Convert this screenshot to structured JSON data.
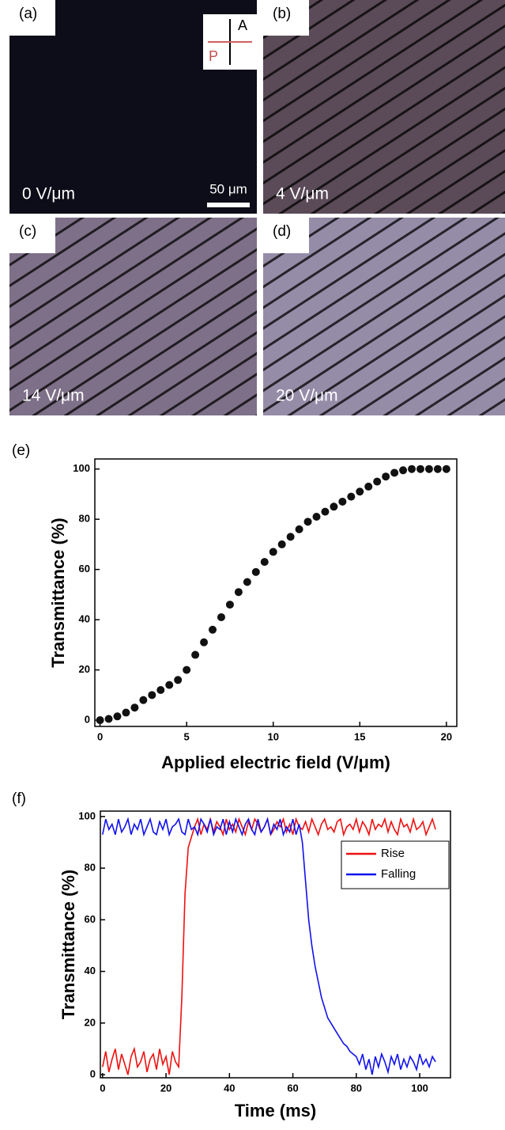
{
  "micrographs": [
    {
      "label": "(a)",
      "field": "0 V/μm"
    },
    {
      "label": "(b)",
      "field": "4 V/μm"
    },
    {
      "label": "(c)",
      "field": "14 V/μm"
    },
    {
      "label": "(d)",
      "field": "20 V/μm"
    }
  ],
  "scale_bar": "50 μm",
  "analyzer": "A",
  "polarizer": "P",
  "chart_data": [
    {
      "type": "scatter",
      "panel_label": "(e)",
      "x_label": "Applied electric field (V/μm)",
      "y_label": "Transmittance (%)",
      "x": [
        0,
        0.5,
        1,
        1.5,
        2,
        2.5,
        3,
        3.5,
        4,
        4.5,
        5,
        5.5,
        6,
        6.5,
        7,
        7.5,
        8,
        8.5,
        9,
        9.5,
        10,
        10.5,
        11,
        11.5,
        12,
        12.5,
        13,
        13.5,
        14,
        14.5,
        15,
        15.5,
        16,
        16.5,
        17,
        17.5,
        18,
        18.5,
        19,
        19.5,
        20
      ],
      "values": [
        0,
        0.5,
        1.5,
        3,
        5,
        8,
        10,
        12,
        14,
        16,
        20,
        26,
        31,
        36,
        41,
        46,
        51,
        55,
        59,
        63,
        67,
        70,
        73,
        76,
        79,
        81,
        83,
        85,
        87,
        89,
        91,
        93,
        95,
        97,
        98.5,
        99.5,
        100,
        100,
        100,
        100,
        100
      ],
      "color": "#111111",
      "xlim": [
        -0.3,
        20.6
      ],
      "ylim": [
        -2.5,
        104
      ],
      "xticks": [
        0,
        5,
        10,
        15,
        20
      ],
      "yticks": [
        0,
        20,
        40,
        60,
        80,
        100
      ]
    },
    {
      "type": "line",
      "panel_label": "(f)",
      "x_label": "Time (ms)",
      "y_label": "Transmittance (%)",
      "x": [
        0,
        1,
        2,
        3,
        4,
        5,
        6,
        7,
        8,
        9,
        10,
        11,
        12,
        13,
        14,
        15,
        16,
        17,
        18,
        19,
        20,
        21,
        22,
        23,
        24,
        25,
        26,
        27,
        28,
        29,
        30,
        31,
        32,
        33,
        34,
        35,
        36,
        37,
        38,
        39,
        40,
        41,
        42,
        43,
        44,
        45,
        46,
        47,
        48,
        49,
        50,
        51,
        52,
        53,
        54,
        55,
        56,
        57,
        58,
        59,
        60,
        61,
        62,
        63,
        64,
        65,
        66,
        67,
        68,
        69,
        70,
        71,
        72,
        73,
        74,
        75,
        76,
        77,
        78,
        79,
        80,
        81,
        82,
        83,
        84,
        85,
        86,
        87,
        88,
        89,
        90,
        91,
        92,
        93,
        94,
        95,
        96,
        97,
        98,
        99,
        100,
        101,
        102,
        103,
        104,
        105
      ],
      "series": [
        {
          "name": "Rise",
          "color": "#ee1111",
          "values": [
            3,
            9,
            1,
            6,
            10,
            2,
            8,
            4,
            0,
            7,
            10,
            3,
            5,
            9,
            1,
            6,
            8,
            2,
            10,
            4,
            7,
            0,
            9,
            5,
            3,
            30,
            70,
            88,
            92,
            96,
            99,
            93,
            97,
            95,
            99,
            94,
            98,
            96,
            93,
            99,
            95,
            97,
            94,
            99,
            96,
            93,
            98,
            95,
            99,
            97,
            94,
            96,
            99,
            93,
            95,
            98,
            96,
            99,
            94,
            97,
            93,
            99,
            96,
            95,
            98,
            94,
            99,
            96,
            93,
            97,
            99,
            95,
            96,
            94,
            98,
            99,
            93,
            96,
            97,
            95,
            99,
            94,
            98,
            96,
            93,
            99,
            95,
            97,
            96,
            99,
            94,
            98,
            95,
            93,
            99,
            96,
            97,
            94,
            99,
            95,
            96,
            98,
            93,
            96,
            99,
            95
          ]
        },
        {
          "name": "Falling",
          "color": "#1111ee",
          "values": [
            93,
            99,
            95,
            97,
            93,
            99,
            94,
            96,
            99,
            93,
            97,
            95,
            99,
            93,
            96,
            99,
            94,
            93,
            98,
            95,
            99,
            93,
            96,
            97,
            99,
            94,
            93,
            99,
            95,
            96,
            93,
            99,
            97,
            94,
            99,
            93,
            96,
            95,
            99,
            93,
            98,
            94,
            99,
            96,
            93,
            97,
            99,
            95,
            93,
            99,
            94,
            96,
            99,
            93,
            97,
            95,
            99,
            93,
            96,
            94,
            99,
            93,
            97,
            90,
            75,
            60,
            50,
            42,
            36,
            30,
            26,
            22,
            20,
            18,
            16,
            14,
            12,
            11,
            9,
            8,
            7,
            4,
            8,
            2,
            6,
            0,
            7,
            3,
            8,
            5,
            1,
            7,
            4,
            8,
            2,
            6,
            3,
            7,
            5,
            2,
            8,
            4,
            6,
            3,
            7,
            5
          ]
        }
      ],
      "legend": "upper right",
      "xlim": [
        -0.7,
        109.7
      ],
      "ylim": [
        -1.2,
        102.1
      ],
      "xticks": [
        0,
        20,
        40,
        60,
        80,
        100
      ],
      "yticks": [
        0,
        20,
        40,
        60,
        80,
        100
      ]
    }
  ]
}
